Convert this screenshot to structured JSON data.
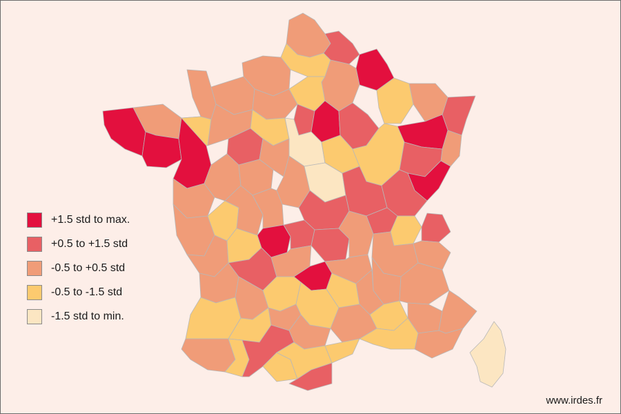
{
  "colors": {
    "background": "#fdeee8",
    "border": "#6b6b6b",
    "region_outline": "#b8b8b8"
  },
  "legend": [
    {
      "label": "+1.5 std to max.",
      "color": "#e3103e",
      "class": "c1"
    },
    {
      "label": "+0.5 to +1.5 std",
      "color": "#e86064",
      "class": "c2"
    },
    {
      "label": "-0.5 to +0.5 std",
      "color": "#f09c78",
      "class": "c3"
    },
    {
      "label": "-0.5 to -1.5 std",
      "color": "#fcca6f",
      "class": "c4"
    },
    {
      "label": "-1.5 std to min.",
      "color": "#fce6c2",
      "class": "c5"
    }
  ],
  "source": "www.irdes.fr",
  "regions": [
    {
      "name": "nord",
      "class": "c3"
    },
    {
      "name": "aisne",
      "class": "c2"
    },
    {
      "name": "ardennes",
      "class": "c1"
    },
    {
      "name": "somme",
      "class": "c4"
    },
    {
      "name": "seine-maritime",
      "class": "c3"
    },
    {
      "name": "marne",
      "class": "c3"
    },
    {
      "name": "meuse",
      "class": "c4"
    },
    {
      "name": "moselle",
      "class": "c3"
    },
    {
      "name": "bas-rhin",
      "class": "c2"
    },
    {
      "name": "manche",
      "class": "c3"
    },
    {
      "name": "calvados",
      "class": "c3"
    },
    {
      "name": "eure",
      "class": "c3"
    },
    {
      "name": "paris-region",
      "class": "c4"
    },
    {
      "name": "seine-et-marne",
      "class": "c2"
    },
    {
      "name": "aube",
      "class": "c1"
    },
    {
      "name": "haute-marne",
      "class": "c2"
    },
    {
      "name": "vosges",
      "class": "c1"
    },
    {
      "name": "haut-rhin",
      "class": "c3"
    },
    {
      "name": "finistere",
      "class": "c1"
    },
    {
      "name": "cotes-d-armor",
      "class": "c3"
    },
    {
      "name": "morbihan",
      "class": "c1"
    },
    {
      "name": "ille-et-vilaine",
      "class": "c1"
    },
    {
      "name": "mayenne",
      "class": "c4"
    },
    {
      "name": "orne",
      "class": "c3"
    },
    {
      "name": "sarthe",
      "class": "c2"
    },
    {
      "name": "eure-et-loir",
      "class": "c4"
    },
    {
      "name": "loiret",
      "class": "c5"
    },
    {
      "name": "yonne",
      "class": "c4"
    },
    {
      "name": "cote-d-or",
      "class": "c4"
    },
    {
      "name": "haute-saone",
      "class": "c2"
    },
    {
      "name": "doubs",
      "class": "c1"
    },
    {
      "name": "loire-atlantique",
      "class": "c3"
    },
    {
      "name": "maine-et-loire",
      "class": "c3"
    },
    {
      "name": "indre-et-loire",
      "class": "c3"
    },
    {
      "name": "loir-et-cher",
      "class": "c3"
    },
    {
      "name": "cher",
      "class": "c3"
    },
    {
      "name": "nievre",
      "class": "c5"
    },
    {
      "name": "saone-et-loire",
      "class": "c2"
    },
    {
      "name": "jura",
      "class": "c2"
    },
    {
      "name": "vendee",
      "class": "c3"
    },
    {
      "name": "deux-sevres",
      "class": "c4"
    },
    {
      "name": "vienne",
      "class": "c3"
    },
    {
      "name": "indre",
      "class": "c3"
    },
    {
      "name": "allier",
      "class": "c2"
    },
    {
      "name": "rhone",
      "class": "c2"
    },
    {
      "name": "ain",
      "class": "c4"
    },
    {
      "name": "haute-savoie",
      "class": "c2"
    },
    {
      "name": "charente-maritime",
      "class": "c3"
    },
    {
      "name": "charente",
      "class": "c4"
    },
    {
      "name": "haute-vienne",
      "class": "c1"
    },
    {
      "name": "creuse",
      "class": "c2"
    },
    {
      "name": "puy-de-dome",
      "class": "c2"
    },
    {
      "name": "loire",
      "class": "c3"
    },
    {
      "name": "isere",
      "class": "c3"
    },
    {
      "name": "savoie",
      "class": "c3"
    },
    {
      "name": "gironde",
      "class": "c3"
    },
    {
      "name": "dordogne",
      "class": "c2"
    },
    {
      "name": "correze",
      "class": "c3"
    },
    {
      "name": "cantal",
      "class": "c1"
    },
    {
      "name": "haute-loire",
      "class": "c3"
    },
    {
      "name": "drome",
      "class": "c3"
    },
    {
      "name": "hautes-alpes",
      "class": "c3"
    },
    {
      "name": "landes",
      "class": "c4"
    },
    {
      "name": "lot-et-garonne",
      "class": "c3"
    },
    {
      "name": "lot",
      "class": "c4"
    },
    {
      "name": "aveyron",
      "class": "c4"
    },
    {
      "name": "lozere",
      "class": "c4"
    },
    {
      "name": "ardeche",
      "class": "c3"
    },
    {
      "name": "vaucluse",
      "class": "c4"
    },
    {
      "name": "alpes-de-haute-provence",
      "class": "c3"
    },
    {
      "name": "alpes-maritimes",
      "class": "c3"
    },
    {
      "name": "pyrenees-atlantiques",
      "class": "c3"
    },
    {
      "name": "gers",
      "class": "c4"
    },
    {
      "name": "tarn-et-garonne",
      "class": "c3"
    },
    {
      "name": "tarn",
      "class": "c3"
    },
    {
      "name": "gard",
      "class": "c3"
    },
    {
      "name": "bouches-du-rhone",
      "class": "c4"
    },
    {
      "name": "var",
      "class": "c3"
    },
    {
      "name": "hautes-pyrenees",
      "class": "c4"
    },
    {
      "name": "haute-garonne",
      "class": "c2"
    },
    {
      "name": "ariege",
      "class": "c4"
    },
    {
      "name": "aude",
      "class": "c4"
    },
    {
      "name": "herault",
      "class": "c4"
    },
    {
      "name": "pyrenees-orientales",
      "class": "c2"
    },
    {
      "name": "corse",
      "class": "c5"
    }
  ]
}
